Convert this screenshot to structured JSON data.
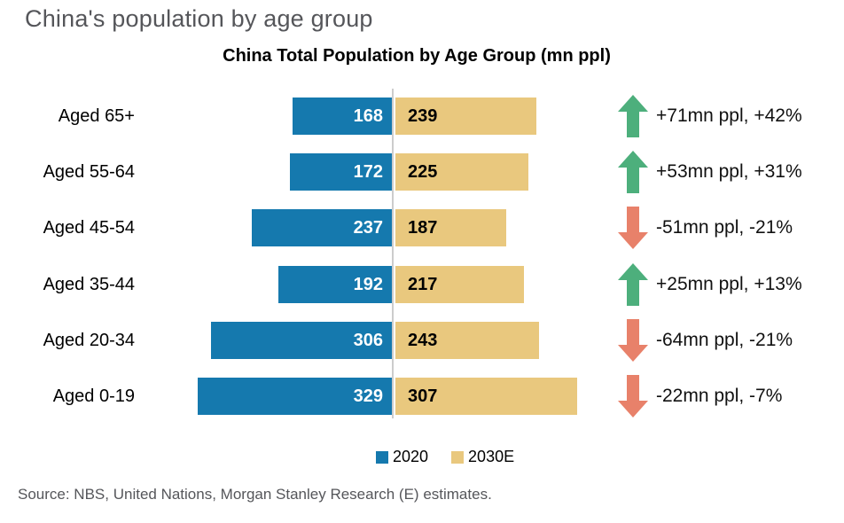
{
  "page": {
    "title": "China's population by age group",
    "source": "Source: NBS, United Nations, Morgan Stanley Research (E) estimates."
  },
  "chart_data": {
    "type": "bar",
    "variant": "diverging-horizontal",
    "title": "China Total Population by Age Group (mn ppl)",
    "unit": "mn ppl",
    "categories": [
      "Aged 65+",
      "Aged 55-64",
      "Aged 45-54",
      "Aged 35-44",
      "Aged 20-34",
      "Aged 0-19"
    ],
    "series": [
      {
        "name": "2020",
        "values": [
          168,
          172,
          237,
          192,
          306,
          329
        ]
      },
      {
        "name": "2030E",
        "values": [
          239,
          225,
          187,
          217,
          243,
          307
        ]
      }
    ],
    "legend": [
      {
        "label": "2020"
      },
      {
        "label": "2030E"
      }
    ],
    "legend_position": "bottom-center",
    "grid": false,
    "rows": [
      {
        "label": "Aged 65+",
        "v2020": 168,
        "v2030": 239,
        "change": "+71mn ppl, +42%",
        "direction": "up"
      },
      {
        "label": "Aged 55-64",
        "v2020": 172,
        "v2030": 225,
        "change": "+53mn ppl, +31%",
        "direction": "up"
      },
      {
        "label": "Aged 45-54",
        "v2020": 237,
        "v2030": 187,
        "change": "-51mn ppl, -21%",
        "direction": "down"
      },
      {
        "label": "Aged 35-44",
        "v2020": 192,
        "v2030": 217,
        "change": "+25mn ppl, +13%",
        "direction": "up"
      },
      {
        "label": "Aged 20-34",
        "v2020": 306,
        "v2030": 243,
        "change": "-64mn ppl, -21%",
        "direction": "down"
      },
      {
        "label": "Aged 0-19",
        "v2020": 329,
        "v2030": 307,
        "change": "-22mn ppl, -7%",
        "direction": "down"
      }
    ],
    "colors": {
      "bar_2020": "#1579ae",
      "bar_2030": "#e9c87e",
      "arrow_up": "#4daf7c",
      "arrow_down": "#e8816a",
      "gray_text": "#55565a"
    }
  }
}
